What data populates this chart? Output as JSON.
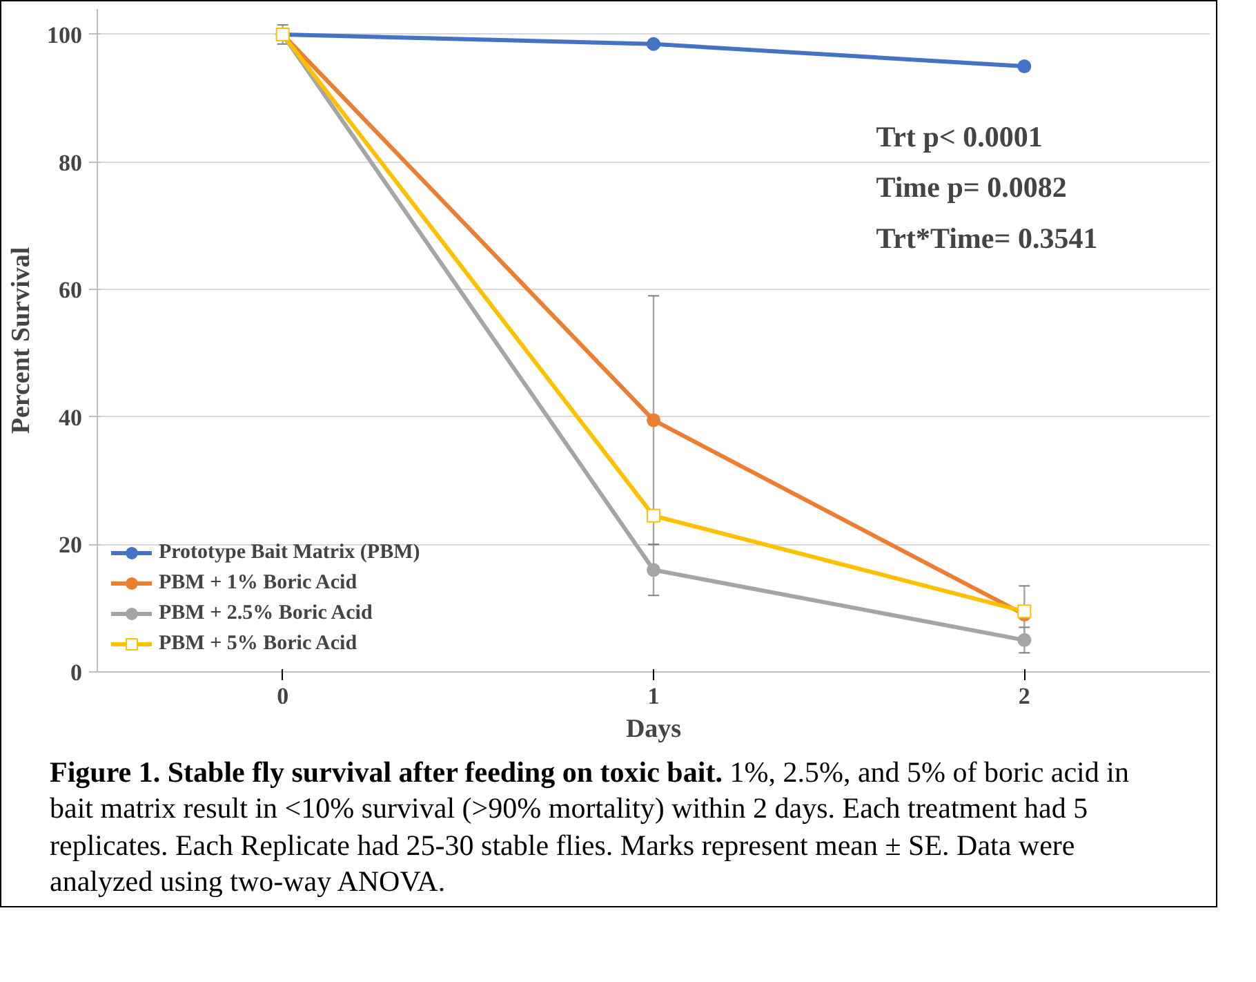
{
  "chart_data": {
    "type": "line",
    "xlabel": "Days",
    "ylabel": "Percent Survival",
    "categories": [
      "0",
      "1",
      "2"
    ],
    "series": [
      {
        "name": "Prototype Bait Matrix (PBM)",
        "color": "#4472c4",
        "marker": "circle",
        "values": [
          100,
          98.5,
          95
        ],
        "errors": [
          1.5,
          null,
          null
        ]
      },
      {
        "name": "PBM + 1% Boric Acid",
        "color": "#ed7d31",
        "marker": "circle",
        "values": [
          100,
          39.5,
          9
        ],
        "errors": [
          null,
          19.5,
          4.5
        ]
      },
      {
        "name": "PBM + 2.5% Boric Acid",
        "color": "#a5a5a5",
        "marker": "circle",
        "values": [
          100,
          16,
          5
        ],
        "errors": [
          null,
          4,
          2
        ]
      },
      {
        "name": "PBM + 5% Boric Acid",
        "color": "#ffc000",
        "marker": "square",
        "values": [
          100,
          24.5,
          9.5
        ]
      }
    ],
    "ylim": [
      0,
      104
    ],
    "yticks": [
      0,
      20,
      40,
      60,
      80,
      100
    ],
    "grid": "y",
    "legend": "bottom left",
    "annotations": [
      "Trt p< 0.0001\nTime p= 0.0082\nTrt*Time= 0.3541",
      "Figure 1. Stable fly survival after feeding on toxic bait.",
      "1%, 2.5%, and 5% of boric acid in bait matrix result in <10% survival (>90% mortality) within 2 days. Each treatment had 5 replicates. Each Replicate had 25-30 stable flies. Marks represent mean ± SE. Data were analyzed using two-way ANOVA."
    ]
  }
}
